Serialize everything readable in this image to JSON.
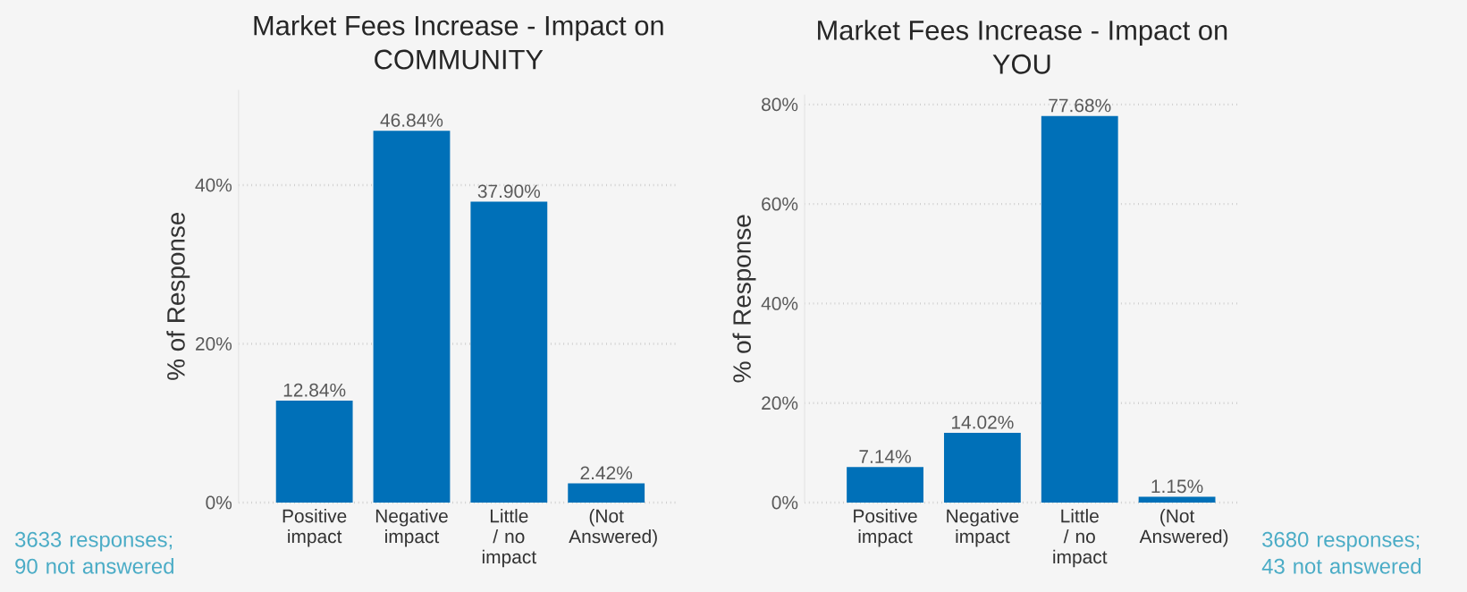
{
  "chart_data": [
    {
      "type": "bar",
      "title": "Market Fees Increase - Impact on COMMUNITY",
      "ylabel": "% of Response",
      "categories": [
        "Positive impact",
        "Negative impact",
        "Little / no impact",
        "(Not Answered)"
      ],
      "values": [
        12.84,
        46.84,
        37.9,
        2.42
      ],
      "color": "#0070b8",
      "value_labels": [
        "12.84%",
        "46.84%",
        "37.90%",
        "2.42%"
      ],
      "ylim": [
        0,
        52
      ],
      "yticks": [
        {
          "value": 0,
          "label": "0%"
        },
        {
          "value": 20,
          "label": "20%"
        },
        {
          "value": 40,
          "label": "40%"
        }
      ],
      "grid": "y",
      "annotations": [
        "3633 responses; 90 not answered"
      ]
    },
    {
      "type": "bar",
      "title": "Market Fees Increase - Impact on YOU",
      "ylabel": "% of Response",
      "categories": [
        "Positive impact",
        "Negative impact",
        "Little / no impact",
        "(Not Answered)"
      ],
      "values": [
        7.14,
        14.02,
        77.68,
        1.15
      ],
      "color": "#0070b8",
      "value_labels": [
        "7.14%",
        "14.02%",
        "77.68%",
        "1.15%"
      ],
      "ylim": [
        0,
        82
      ],
      "yticks": [
        {
          "value": 0,
          "label": "0%"
        },
        {
          "value": 20,
          "label": "20%"
        },
        {
          "value": 40,
          "label": "40%"
        },
        {
          "value": 60,
          "label": "60%"
        },
        {
          "value": 80,
          "label": "80%"
        }
      ],
      "grid": "y",
      "annotations": [
        "3680 responses; 43 not answered"
      ]
    }
  ]
}
